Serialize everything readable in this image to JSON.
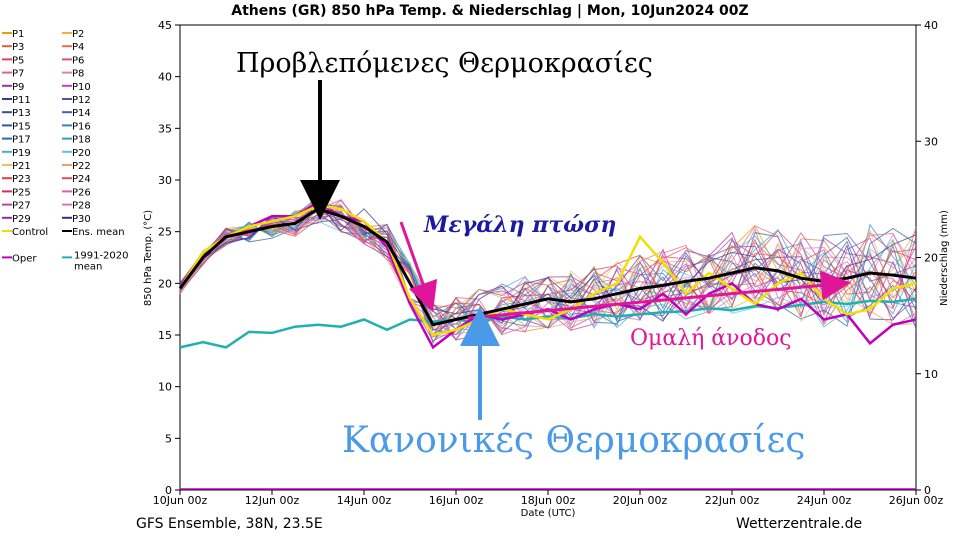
{
  "chart_data": {
    "type": "line",
    "title": "Athens  (GR)  850 hPa Temp. & Niederschlag | Mon, 10Jun2024 00Z",
    "xlabel": "Date (UTC)",
    "ylabel": "850 hPa Temp. (°C)",
    "y2label": "Niederschlag (mm)",
    "xlim": [
      0,
      16
    ],
    "ylim": [
      0,
      45
    ],
    "y2lim": [
      0,
      40
    ],
    "x_tick_values": [
      0,
      2,
      4,
      6,
      8,
      10,
      12,
      14,
      16
    ],
    "x_tick_labels": [
      "10Jun 00z",
      "12Jun 00z",
      "14Jun 00z",
      "16Jun 00z",
      "18Jun 00z",
      "20Jun 00z",
      "22Jun 00z",
      "24Jun 00z",
      "26Jun 00z"
    ],
    "y_ticks": [
      0,
      5,
      10,
      15,
      20,
      25,
      30,
      35,
      40,
      45
    ],
    "y2_ticks": [
      0,
      10,
      20,
      30,
      40
    ],
    "grid": false,
    "legend_position": "left",
    "legend_entries": [
      {
        "name": "P1",
        "color": "#e8a000"
      },
      {
        "name": "P2",
        "color": "#f0b040"
      },
      {
        "name": "P3",
        "color": "#e06030"
      },
      {
        "name": "P4",
        "color": "#e07050"
      },
      {
        "name": "P5",
        "color": "#e04050"
      },
      {
        "name": "P6",
        "color": "#e05070"
      },
      {
        "name": "P7",
        "color": "#e06090"
      },
      {
        "name": "P8",
        "color": "#e080b0"
      },
      {
        "name": "P9",
        "color": "#a030a0"
      },
      {
        "name": "P10",
        "color": "#c040c0"
      },
      {
        "name": "P11",
        "color": "#304090"
      },
      {
        "name": "P12",
        "color": "#5050b0"
      },
      {
        "name": "P13",
        "color": "#3050a0"
      },
      {
        "name": "P14",
        "color": "#4060c0"
      },
      {
        "name": "P15",
        "color": "#2060a0"
      },
      {
        "name": "P16",
        "color": "#4080c0"
      },
      {
        "name": "P17",
        "color": "#2070b0"
      },
      {
        "name": "P18",
        "color": "#30a0c0"
      },
      {
        "name": "P19",
        "color": "#40b0d0"
      },
      {
        "name": "P20",
        "color": "#60c0e0"
      },
      {
        "name": "P21",
        "color": "#f0c060"
      },
      {
        "name": "P22",
        "color": "#f0a060"
      },
      {
        "name": "P23",
        "color": "#e04040"
      },
      {
        "name": "P24",
        "color": "#e05050"
      },
      {
        "name": "P25",
        "color": "#d03060"
      },
      {
        "name": "P26",
        "color": "#e060a0"
      },
      {
        "name": "P27",
        "color": "#c040a0"
      },
      {
        "name": "P28",
        "color": "#e070c0"
      },
      {
        "name": "P29",
        "color": "#9030a0"
      },
      {
        "name": "P30",
        "color": "#303090"
      },
      {
        "name": "Control",
        "color": "#f0e000"
      },
      {
        "name": "Ens. mean",
        "color": "#000000"
      },
      {
        "name": "Oper",
        "color": "#c000c0"
      },
      {
        "name": "1991-2020 mean",
        "color": "#20b0b0"
      }
    ],
    "series": [
      {
        "name": "Ens. mean",
        "color": "#000000",
        "x": [
          0,
          0.5,
          1,
          1.5,
          2,
          2.5,
          3,
          3.5,
          4,
          4.5,
          5,
          5.5,
          6,
          6.5,
          7,
          7.5,
          8,
          8.5,
          9,
          9.5,
          10,
          10.5,
          11,
          11.5,
          12,
          12.5,
          13,
          13.5,
          14,
          14.5,
          15,
          15.5,
          16
        ],
        "y": [
          19.5,
          22.5,
          24.5,
          25,
          25.5,
          25.8,
          27.2,
          26.5,
          25.5,
          24,
          20,
          16,
          16.5,
          17,
          17.5,
          18,
          18.5,
          18.2,
          18.5,
          19,
          19.5,
          19.8,
          20.2,
          20.5,
          21,
          21.5,
          21.2,
          20.5,
          20.2,
          20.5,
          21,
          20.8,
          20.5
        ]
      },
      {
        "name": "Control",
        "color": "#f0e000",
        "x": [
          0,
          0.5,
          1,
          1.5,
          2,
          2.5,
          3,
          3.5,
          4,
          4.5,
          5,
          5.5,
          6,
          6.5,
          7,
          7.5,
          8,
          8.5,
          9,
          9.5,
          10,
          10.5,
          11,
          11.5,
          12,
          12.5,
          13,
          13.5,
          14,
          14.5,
          15,
          15.5,
          16
        ],
        "y": [
          19.5,
          23,
          24.5,
          25.5,
          26,
          26.5,
          27.5,
          27.2,
          26,
          24,
          18.5,
          15,
          15.5,
          16.5,
          17.5,
          17,
          16.5,
          17.5,
          19,
          20,
          24.5,
          22,
          19,
          21,
          19.5,
          18,
          20,
          21,
          18.5,
          17,
          17.5,
          19.5,
          20
        ]
      },
      {
        "name": "Oper",
        "color": "#c000c0",
        "x": [
          0,
          0.5,
          1,
          1.5,
          2,
          2.5,
          3,
          3.5,
          4,
          4.5,
          5,
          5.5,
          6,
          6.5,
          7,
          7.5,
          8,
          8.5,
          9,
          9.5,
          10,
          10.5,
          11,
          11.5,
          12,
          12.5,
          13,
          13.5,
          14,
          14.5,
          15,
          15.5,
          16
        ],
        "y": [
          19.5,
          23,
          24.5,
          25.5,
          26.5,
          26.5,
          27.8,
          26.5,
          26,
          23.5,
          18,
          13.8,
          15.5,
          17,
          16.5,
          17,
          17.5,
          16.5,
          17.5,
          18,
          17.5,
          19,
          17,
          19,
          20,
          18,
          17.5,
          18.5,
          16.5,
          17,
          14.2,
          16,
          16.5
        ]
      },
      {
        "name": "1991-2020 mean",
        "color": "#20b0b0",
        "x": [
          0,
          0.5,
          1,
          1.5,
          2,
          2.5,
          3,
          3.5,
          4,
          4.5,
          5,
          5.5,
          6,
          6.5,
          7,
          7.5,
          8,
          8.5,
          9,
          9.5,
          10,
          10.5,
          11,
          11.5,
          12,
          12.5,
          13,
          13.5,
          14,
          14.5,
          15,
          15.5,
          16
        ],
        "y": [
          13.8,
          14.3,
          13.8,
          15.3,
          15.2,
          15.8,
          16,
          15.8,
          16.5,
          15.5,
          16.5,
          16.3,
          16.5,
          16.2,
          16.8,
          16.5,
          16.8,
          16.6,
          17,
          16.8,
          17,
          17.2,
          17.3,
          17.6,
          17.4,
          17.8,
          17.6,
          17.9,
          18.2,
          18,
          18.3,
          18.2,
          18.5
        ]
      }
    ],
    "annotations": [
      {
        "text": "Προβλεπόμενες Θερμοκρασίες",
        "color": "#000000"
      },
      {
        "text": "Μεγάλη πτώση",
        "color": "#1a1aa0"
      },
      {
        "text": "Ομαλή άνοδος",
        "color": "#e0159a"
      },
      {
        "text": "Κανονικές Θερμοκρασίες",
        "color": "#4a9ae8"
      }
    ],
    "footer_left": "GFS Ensemble, 38N, 23.5E",
    "footer_right": "Wetterzentrale.de"
  }
}
